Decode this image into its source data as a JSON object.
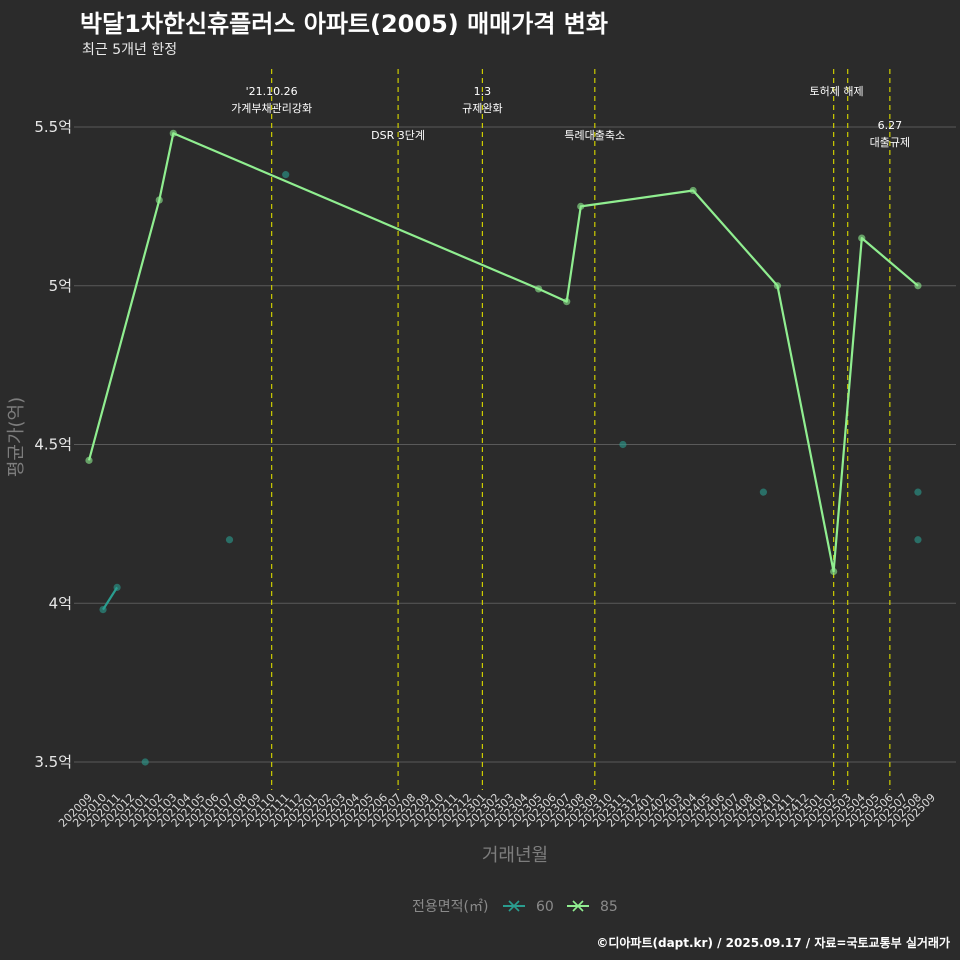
{
  "title": "박달1차한신휴플러스 아파트(2005) 매매가격 변화",
  "subtitle": "최근 5개년 한정",
  "caption": "©디아파트(dapt.kr) / 2025.09.17 / 자료=국토교통부 실거래가",
  "chart_data": {
    "type": "line",
    "xlabel": "거래년월",
    "ylabel": "평균가(억)",
    "x_categories": [
      "202009",
      "202010",
      "202011",
      "202012",
      "202101",
      "202102",
      "202103",
      "202104",
      "202105",
      "202106",
      "202107",
      "202108",
      "202109",
      "202110",
      "202111",
      "202112",
      "202201",
      "202202",
      "202203",
      "202204",
      "202205",
      "202206",
      "202207",
      "202208",
      "202209",
      "202210",
      "202211",
      "202212",
      "202301",
      "202302",
      "202303",
      "202304",
      "202305",
      "202306",
      "202307",
      "202308",
      "202309",
      "202310",
      "202311",
      "202312",
      "202401",
      "202402",
      "202403",
      "202404",
      "202405",
      "202406",
      "202407",
      "202408",
      "202409",
      "202410",
      "202411",
      "202412",
      "202501",
      "202502",
      "202503",
      "202504",
      "202505",
      "202506",
      "202507",
      "202508",
      "202509"
    ],
    "ylim": [
      3.4,
      5.65
    ],
    "y_ticks": [
      3.5,
      4,
      4.5,
      5,
      5.5
    ],
    "y_tick_labels": [
      "3.5억",
      "4억",
      "4.5억",
      "5억",
      "5.5억"
    ],
    "grid": "horizontal",
    "legend_title": "전용면적(㎡)",
    "legend_position": "bottom",
    "series": [
      {
        "name": "60",
        "color": "#2a9d8f",
        "line_points": [
          [
            "202010",
            3.98
          ],
          [
            "202011",
            4.05
          ]
        ],
        "points": [
          [
            "202010",
            3.98
          ],
          [
            "202011",
            4.05
          ],
          [
            "202101",
            3.5
          ],
          [
            "202107",
            4.2
          ],
          [
            "202111",
            5.35
          ],
          [
            "202311",
            4.5
          ],
          [
            "202409",
            4.35
          ],
          [
            "202508",
            4.35
          ],
          [
            "202508",
            4.2
          ]
        ]
      },
      {
        "name": "85",
        "color": "#90ee90",
        "line_points": [
          [
            "202009",
            4.45
          ],
          [
            "202102",
            5.27
          ],
          [
            "202103",
            5.48
          ],
          [
            "202305",
            4.99
          ],
          [
            "202307",
            4.95
          ],
          [
            "202308",
            5.25
          ],
          [
            "202404",
            5.3
          ],
          [
            "202410",
            5.0
          ],
          [
            "202502",
            4.1
          ],
          [
            "202504",
            5.15
          ],
          [
            "202508",
            5.0
          ]
        ],
        "points": [
          [
            "202009",
            4.45
          ],
          [
            "202102",
            5.27
          ],
          [
            "202103",
            5.48
          ],
          [
            "202305",
            4.99
          ],
          [
            "202307",
            4.95
          ],
          [
            "202308",
            5.25
          ],
          [
            "202404",
            5.3
          ],
          [
            "202410",
            5.0
          ],
          [
            "202502",
            4.1
          ],
          [
            "202504",
            5.15
          ],
          [
            "202508",
            5.0
          ]
        ]
      }
    ],
    "annotations": [
      {
        "x": "202110",
        "lines": [
          "'21.10.26",
          "가계부채관리강화"
        ],
        "row": 0
      },
      {
        "x": "202207",
        "lines": [
          "DSR 3단계"
        ],
        "row": 1
      },
      {
        "x": "202301",
        "lines": [
          "1.3",
          "규제완화"
        ],
        "row": 0
      },
      {
        "x": "202309",
        "lines": [
          "특례대출축소"
        ],
        "row": 1
      },
      {
        "x": "202502",
        "lines": [
          "토허제 해제"
        ],
        "row": 0,
        "anchor": "end"
      },
      {
        "x": "202503",
        "lines": [],
        "row": 0
      },
      {
        "x": "202506",
        "lines": [
          "6.27",
          "대출규제"
        ],
        "row": 2
      }
    ]
  }
}
